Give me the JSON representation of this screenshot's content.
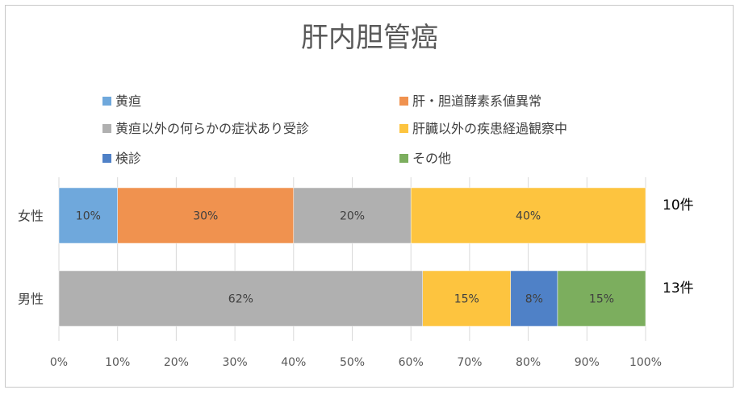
{
  "chart_data": {
    "type": "bar",
    "orientation": "horizontal",
    "stacked": "percent",
    "title": "肝内胆管癌",
    "categories": [
      "女性",
      "男性"
    ],
    "category_counts": [
      "10件",
      "13件"
    ],
    "series": [
      {
        "name": "黄疸",
        "color": "#6fa8dc",
        "values": [
          10,
          0
        ]
      },
      {
        "name": "肝・胆道酵素系値異常",
        "color": "#f0924f",
        "values": [
          30,
          0
        ]
      },
      {
        "name": "黄疸以外の何らかの症状あり受診",
        "color": "#b0b0b0",
        "values": [
          20,
          62
        ]
      },
      {
        "name": "肝臓以外の疾患経過観察中",
        "color": "#fdc43f",
        "values": [
          40,
          15
        ]
      },
      {
        "name": "検診",
        "color": "#4f81c7",
        "values": [
          0,
          8
        ]
      },
      {
        "name": "その他",
        "color": "#7cae5e",
        "values": [
          0,
          15
        ]
      }
    ],
    "xlim": [
      0,
      100
    ],
    "xticks": [
      "0%",
      "10%",
      "20%",
      "30%",
      "40%",
      "50%",
      "60%",
      "70%",
      "80%",
      "90%",
      "100%"
    ],
    "grid": true,
    "legend_position": "top"
  }
}
